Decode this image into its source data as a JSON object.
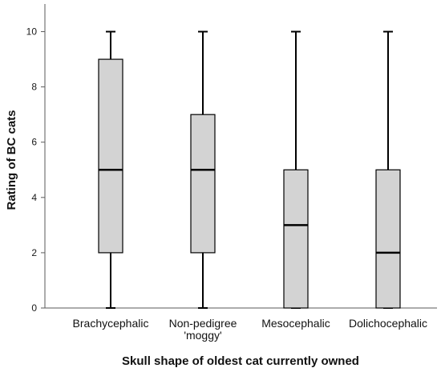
{
  "chart_data": {
    "type": "boxplot",
    "title": "",
    "xlabel": "Skull shape of oldest cat currently owned",
    "ylabel": "Rating of BC cats",
    "ylim": [
      0,
      11
    ],
    "yticks": [
      "0",
      "2",
      "4",
      "6",
      "8",
      "10"
    ],
    "grid": false,
    "categories": [
      [
        "Brachycephalic"
      ],
      [
        "Non-pedigree",
        "'moggy'"
      ],
      [
        "Mesocephalic"
      ],
      [
        "Dolichocephalic"
      ]
    ],
    "boxes": [
      {
        "min": 0,
        "q1": 2,
        "median": 5,
        "q3": 9,
        "max": 10
      },
      {
        "min": 0,
        "q1": 2,
        "median": 5,
        "q3": 7,
        "max": 10
      },
      {
        "min": 0,
        "q1": 0,
        "median": 3,
        "q3": 5,
        "max": 10
      },
      {
        "min": 0,
        "q1": 0,
        "median": 2,
        "q3": 5,
        "max": 10
      }
    ],
    "colors": {
      "box_fill": "#d3d3d3",
      "line": "#000000",
      "axis": "#5a5a5a"
    }
  }
}
